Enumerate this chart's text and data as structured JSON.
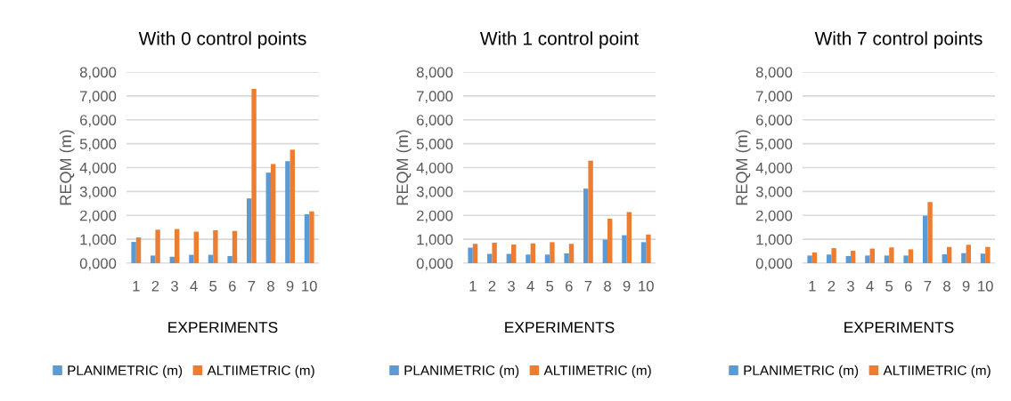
{
  "chart_data": [
    {
      "type": "bar",
      "title": "With 0 control points",
      "xlabel": "EXPERIMENTS",
      "ylabel": "REQM (m)",
      "categories": [
        "1",
        "2",
        "3",
        "4",
        "5",
        "6",
        "7",
        "8",
        "9",
        "10"
      ],
      "series": [
        {
          "name": "PLANIMETRIC (m)",
          "color": "#5b9bd5",
          "values": [
            0.89,
            0.32,
            0.27,
            0.35,
            0.35,
            0.3,
            2.71,
            3.79,
            4.27,
            2.05
          ]
        },
        {
          "name": "ALTIIMETRIC (m)",
          "color": "#ed7d31",
          "values": [
            1.08,
            1.4,
            1.43,
            1.32,
            1.38,
            1.35,
            7.29,
            4.15,
            4.75,
            2.17
          ]
        }
      ],
      "ylim": [
        0,
        8
      ],
      "yticks": [
        {
          "value": 0,
          "label": "0,000"
        },
        {
          "value": 1,
          "label": "1,000"
        },
        {
          "value": 2,
          "label": "2,000"
        },
        {
          "value": 3,
          "label": "3,000"
        },
        {
          "value": 4,
          "label": "4,000"
        },
        {
          "value": 5,
          "label": "5,000"
        },
        {
          "value": 6,
          "label": "6,000"
        },
        {
          "value": 7,
          "label": "7,000"
        },
        {
          "value": 8,
          "label": "8,000"
        }
      ],
      "grid": "y",
      "legend": "bottom"
    },
    {
      "type": "bar",
      "title": "With 1 control point",
      "xlabel": "EXPERIMENTS",
      "ylabel": "REQM (m)",
      "categories": [
        "1",
        "2",
        "3",
        "4",
        "5",
        "6",
        "7",
        "8",
        "9",
        "10"
      ],
      "series": [
        {
          "name": "PLANIMETRIC (m)",
          "color": "#5b9bd5",
          "values": [
            0.65,
            0.39,
            0.39,
            0.36,
            0.36,
            0.41,
            3.12,
            0.99,
            1.17,
            0.88
          ]
        },
        {
          "name": "ALTIIMETRIC (m)",
          "color": "#ed7d31",
          "values": [
            0.81,
            0.86,
            0.78,
            0.83,
            0.88,
            0.81,
            4.29,
            1.86,
            2.14,
            1.2
          ]
        }
      ],
      "ylim": [
        0,
        8
      ],
      "yticks": [
        {
          "value": 0,
          "label": "0,000"
        },
        {
          "value": 1,
          "label": "1,000"
        },
        {
          "value": 2,
          "label": "2,000"
        },
        {
          "value": 3,
          "label": "3,000"
        },
        {
          "value": 4,
          "label": "4,000"
        },
        {
          "value": 5,
          "label": "5,000"
        },
        {
          "value": 6,
          "label": "6,000"
        },
        {
          "value": 7,
          "label": "7,000"
        },
        {
          "value": 8,
          "label": "8,000"
        }
      ],
      "grid": "y",
      "legend": "bottom"
    },
    {
      "type": "bar",
      "title": "With 7 control points",
      "xlabel": "EXPERIMENTS",
      "ylabel": "REQM (m)",
      "categories": [
        "1",
        "2",
        "3",
        "4",
        "5",
        "6",
        "7",
        "8",
        "9",
        "10"
      ],
      "series": [
        {
          "name": "PLANIMETRIC (m)",
          "color": "#5b9bd5",
          "values": [
            0.32,
            0.36,
            0.3,
            0.32,
            0.32,
            0.32,
            1.99,
            0.37,
            0.42,
            0.4
          ]
        },
        {
          "name": "ALTIIMETRIC (m)",
          "color": "#ed7d31",
          "values": [
            0.45,
            0.63,
            0.52,
            0.61,
            0.66,
            0.58,
            2.56,
            0.68,
            0.77,
            0.68
          ]
        }
      ],
      "ylim": [
        0,
        8
      ],
      "yticks": [
        {
          "value": 0,
          "label": "0,000"
        },
        {
          "value": 1,
          "label": "1,000"
        },
        {
          "value": 2,
          "label": "2,000"
        },
        {
          "value": 3,
          "label": "3,000"
        },
        {
          "value": 4,
          "label": "4,000"
        },
        {
          "value": 5,
          "label": "5,000"
        },
        {
          "value": 6,
          "label": "6,000"
        },
        {
          "value": 7,
          "label": "7,000"
        },
        {
          "value": 8,
          "label": "8,000"
        }
      ],
      "grid": "y",
      "legend": "bottom"
    }
  ]
}
